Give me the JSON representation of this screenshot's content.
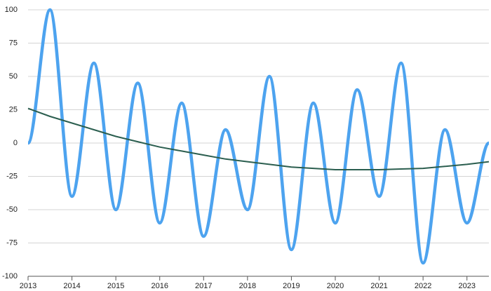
{
  "chart_data": {
    "type": "line",
    "x": [
      2013,
      2013.5,
      2014,
      2014.5,
      2015,
      2015.5,
      2016,
      2016.5,
      2017,
      2017.5,
      2018,
      2018.5,
      2019,
      2019.5,
      2020,
      2020.5,
      2021,
      2021.5,
      2022,
      2022.5,
      2023,
      2023.5
    ],
    "series": [
      {
        "color": "#4da3ef",
        "smooth": true,
        "values": [
          0,
          100,
          -40,
          60,
          -50,
          45,
          -60,
          30,
          -70,
          10,
          -50,
          50,
          -80,
          30,
          -60,
          40,
          -40,
          60,
          -90,
          10,
          -60,
          0
        ]
      },
      {
        "color": "#2b5e4f",
        "smooth": false,
        "values": [
          26,
          20,
          15,
          10,
          5,
          1,
          -3,
          -6,
          -9,
          -12,
          -14,
          -16,
          -18,
          -19,
          -20,
          -20,
          -20,
          -19.5,
          -19,
          -17.5,
          -16,
          -14
        ]
      }
    ],
    "xlim": [
      2013,
      2023.5
    ],
    "xticks": [
      2013,
      2014,
      2015,
      2016,
      2017,
      2018,
      2019,
      2020,
      2021,
      2022,
      2023
    ],
    "ylim": [
      -100,
      100
    ],
    "yticks": [
      -100,
      -75,
      -50,
      -25,
      0,
      25,
      50,
      75,
      100
    ],
    "grid": true
  }
}
